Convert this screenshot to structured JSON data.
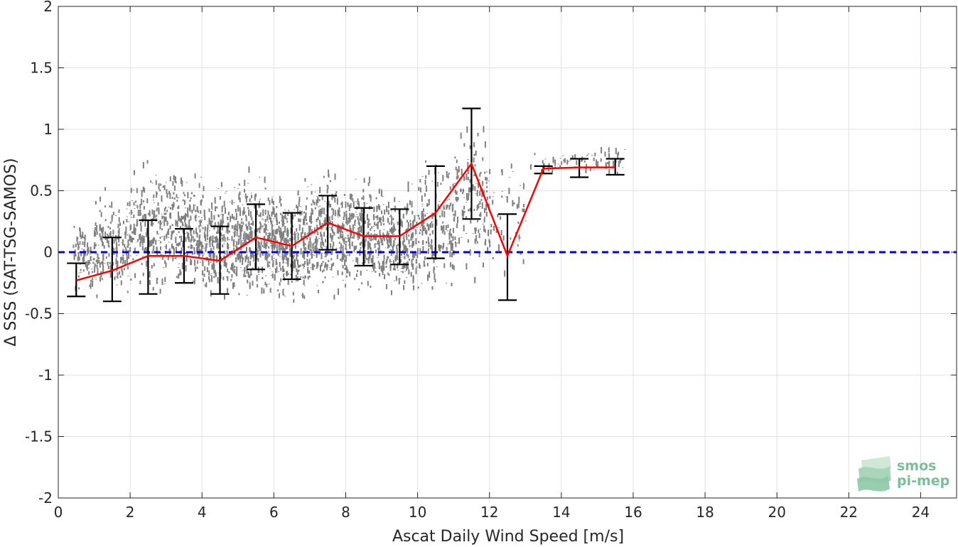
{
  "chart_data": {
    "type": "scatter",
    "title": "",
    "xlabel": "Ascat Daily Wind Speed [m/s]",
    "ylabel": "Δ SSS (SAT-TSG-SAMOS)",
    "xlim": [
      0,
      25
    ],
    "ylim": [
      -2,
      2
    ],
    "xticks": [
      0,
      2,
      4,
      6,
      8,
      10,
      12,
      14,
      16,
      18,
      20,
      22,
      24
    ],
    "xtick_labels": [
      "0",
      "2",
      "4",
      "6",
      "8",
      "10",
      "12",
      "14",
      "16",
      "18",
      "20",
      "22",
      "24"
    ],
    "yticks": [
      -2,
      -1.5,
      -1,
      -0.5,
      0,
      0.5,
      1,
      1.5,
      2
    ],
    "ytick_labels": [
      "-2",
      "-1.5",
      "-1",
      "-0.5",
      "0",
      "0.5",
      "1",
      "1.5",
      "2"
    ],
    "grid": true,
    "reference_line": {
      "y": 0,
      "color": "#0000e0",
      "style": "dashed"
    },
    "scatter_color": "#808080",
    "scatter_clusters": [
      {
        "x": [
          0.4,
          1.0
        ],
        "y": [
          -0.38,
          0.3
        ],
        "n": 90
      },
      {
        "x": [
          1.0,
          2.0
        ],
        "y": [
          -0.45,
          0.58
        ],
        "n": 170
      },
      {
        "x": [
          2.0,
          3.0
        ],
        "y": [
          -0.42,
          0.82
        ],
        "n": 200
      },
      {
        "x": [
          3.0,
          4.0
        ],
        "y": [
          -0.4,
          0.76
        ],
        "n": 230
      },
      {
        "x": [
          4.0,
          5.0
        ],
        "y": [
          -0.45,
          0.62
        ],
        "n": 260
      },
      {
        "x": [
          5.0,
          6.0
        ],
        "y": [
          -0.5,
          0.72
        ],
        "n": 300
      },
      {
        "x": [
          6.0,
          7.0
        ],
        "y": [
          -0.52,
          0.62
        ],
        "n": 300
      },
      {
        "x": [
          7.0,
          8.0
        ],
        "y": [
          -0.45,
          0.75
        ],
        "n": 280
      },
      {
        "x": [
          8.0,
          9.0
        ],
        "y": [
          -0.4,
          0.72
        ],
        "n": 260
      },
      {
        "x": [
          9.0,
          10.0
        ],
        "y": [
          -0.45,
          0.62
        ],
        "n": 230
      },
      {
        "x": [
          10.0,
          11.0
        ],
        "y": [
          -0.52,
          0.92
        ],
        "n": 190
      },
      {
        "x": [
          11.0,
          12.0
        ],
        "y": [
          -0.28,
          1.12
        ],
        "n": 150
      },
      {
        "x": [
          12.0,
          13.0
        ],
        "y": [
          -0.3,
          0.88
        ],
        "n": 45
      },
      {
        "x": [
          13.0,
          14.0
        ],
        "y": [
          0.62,
          0.83
        ],
        "n": 20
      },
      {
        "x": [
          14.0,
          15.0
        ],
        "y": [
          0.62,
          0.87
        ],
        "n": 30
      },
      {
        "x": [
          15.0,
          15.8
        ],
        "y": [
          0.62,
          0.9
        ],
        "n": 25
      }
    ],
    "series": [
      {
        "type": "errorbar",
        "color": "#000000",
        "x": [
          0.5,
          1.5,
          2.5,
          3.5,
          4.5,
          5.5,
          6.5,
          7.5,
          8.5,
          9.5,
          10.5,
          11.5,
          12.5,
          13.5,
          14.5,
          15.5
        ],
        "lower": [
          -0.36,
          -0.4,
          -0.34,
          -0.25,
          -0.34,
          -0.14,
          -0.22,
          0.02,
          -0.11,
          -0.1,
          -0.05,
          0.27,
          -0.39,
          0.64,
          0.61,
          0.63
        ],
        "upper": [
          -0.09,
          0.12,
          0.26,
          0.19,
          0.21,
          0.39,
          0.32,
          0.46,
          0.36,
          0.35,
          0.7,
          1.17,
          0.31,
          0.7,
          0.76,
          0.76
        ]
      },
      {
        "type": "line",
        "color": "#ff0000",
        "x": [
          0.5,
          1.5,
          2.5,
          3.5,
          4.5,
          5.5,
          6.5,
          7.5,
          8.5,
          9.5,
          10.5,
          11.5,
          12.5,
          13.5,
          14.5,
          15.5
        ],
        "y": [
          -0.23,
          -0.15,
          -0.03,
          -0.03,
          -0.07,
          0.12,
          0.05,
          0.24,
          0.13,
          0.13,
          0.32,
          0.72,
          -0.03,
          0.68,
          0.69,
          0.69
        ]
      }
    ]
  },
  "logo": {
    "line1": "smos",
    "line2": "pi-mep",
    "color": "#7bbf9a"
  }
}
